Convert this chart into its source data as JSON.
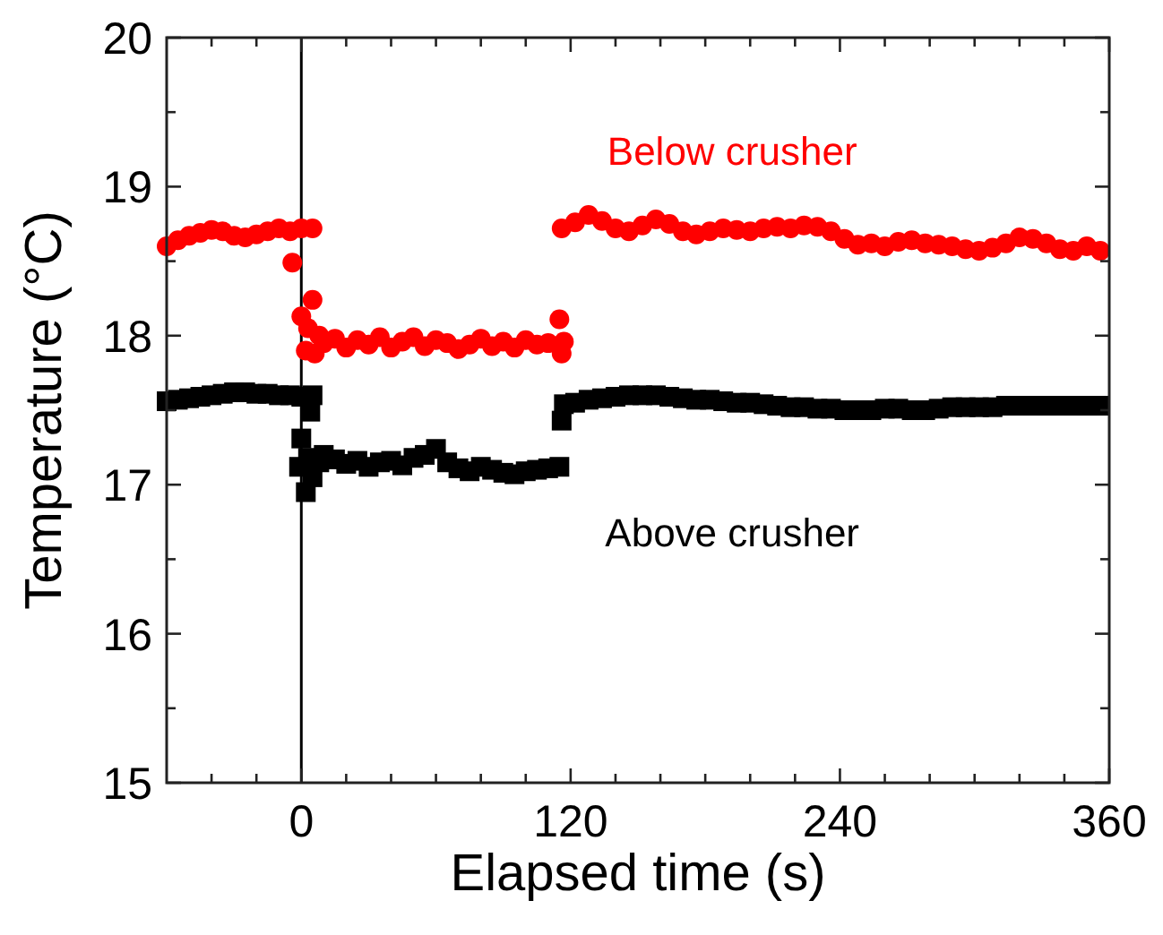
{
  "chart_data": {
    "type": "scatter",
    "xlabel": "Elapsed time (s)",
    "ylabel": "Temperature (°C)",
    "xlim": [
      -60,
      360
    ],
    "ylim": [
      15,
      20
    ],
    "xticks": [
      {
        "value": -40,
        "label": null
      },
      {
        "value": -20,
        "label": null
      },
      0,
      {
        "value": 20,
        "label": null
      },
      {
        "value": 40,
        "label": null
      },
      {
        "value": 60,
        "label": null
      },
      {
        "value": 80,
        "label": null
      },
      {
        "value": 100,
        "label": null
      },
      120,
      {
        "value": 140,
        "label": null
      },
      {
        "value": 160,
        "label": null
      },
      {
        "value": 180,
        "label": null
      },
      {
        "value": 200,
        "label": null
      },
      {
        "value": 220,
        "label": null
      },
      240,
      {
        "value": 260,
        "label": null
      },
      {
        "value": 280,
        "label": null
      },
      {
        "value": 300,
        "label": null
      },
      {
        "value": 320,
        "label": null
      },
      {
        "value": 340,
        "label": null
      },
      360
    ],
    "yticks": [
      15,
      {
        "value": 15.5,
        "label": null
      },
      16,
      {
        "value": 16.5,
        "label": null
      },
      17,
      {
        "value": 17.5,
        "label": null
      },
      18,
      {
        "value": 18.5,
        "label": null
      },
      19,
      {
        "value": 19.5,
        "label": null
      },
      20
    ],
    "grid": false,
    "ref_lines": [
      {
        "axis": "x",
        "value": 0,
        "color": "#000000"
      }
    ],
    "series": [
      {
        "name": "Below crusher",
        "color": "#ff0000",
        "marker": "circle",
        "x": [
          -60,
          -55,
          -50,
          -45,
          -40,
          -35,
          -30,
          -25,
          -20,
          -15,
          -10,
          -5,
          0,
          5,
          -4,
          0,
          2,
          3,
          5,
          6,
          8,
          10,
          15,
          20,
          25,
          30,
          35,
          40,
          45,
          50,
          55,
          60,
          65,
          70,
          75,
          80,
          85,
          90,
          95,
          100,
          105,
          110,
          115,
          116,
          117,
          116,
          122,
          128,
          134,
          140,
          146,
          152,
          158,
          164,
          170,
          176,
          182,
          188,
          194,
          200,
          206,
          212,
          218,
          224,
          230,
          236,
          242,
          248,
          254,
          260,
          266,
          272,
          278,
          284,
          290,
          296,
          302,
          308,
          314,
          320,
          326,
          332,
          338,
          344,
          350,
          356
        ],
        "values": [
          18.6,
          18.64,
          18.67,
          18.69,
          18.71,
          18.7,
          18.67,
          18.66,
          18.68,
          18.7,
          18.72,
          18.7,
          18.72,
          18.72,
          18.49,
          18.13,
          17.9,
          18.05,
          18.24,
          17.88,
          18.0,
          17.95,
          17.98,
          17.92,
          17.97,
          17.94,
          17.99,
          17.92,
          17.96,
          17.99,
          17.93,
          17.97,
          17.95,
          17.91,
          17.94,
          17.98,
          17.93,
          17.96,
          17.92,
          17.97,
          17.94,
          17.95,
          18.11,
          17.88,
          17.96,
          18.72,
          18.76,
          18.81,
          18.77,
          18.72,
          18.7,
          18.74,
          18.78,
          18.75,
          18.7,
          18.68,
          18.7,
          18.72,
          18.71,
          18.7,
          18.72,
          18.73,
          18.72,
          18.74,
          18.73,
          18.7,
          18.65,
          18.61,
          18.62,
          18.6,
          18.63,
          18.64,
          18.62,
          18.61,
          18.6,
          18.58,
          18.57,
          18.59,
          18.62,
          18.66,
          18.65,
          18.62,
          18.58,
          18.57,
          18.6,
          18.57
        ]
      },
      {
        "name": "Above crusher",
        "color": "#000000",
        "marker": "square",
        "x": [
          -60,
          -55,
          -50,
          -45,
          -40,
          -35,
          -30,
          -25,
          -20,
          -15,
          -10,
          -5,
          0,
          5,
          4,
          -1,
          0,
          2,
          3,
          5,
          8,
          10,
          15,
          20,
          25,
          30,
          35,
          40,
          45,
          50,
          55,
          60,
          65,
          70,
          75,
          80,
          85,
          90,
          95,
          100,
          105,
          110,
          115,
          116,
          117,
          122,
          128,
          134,
          140,
          146,
          152,
          158,
          164,
          170,
          176,
          182,
          188,
          194,
          200,
          206,
          212,
          218,
          224,
          230,
          236,
          242,
          248,
          254,
          260,
          266,
          272,
          278,
          284,
          290,
          296,
          302,
          308,
          314,
          320,
          326,
          332,
          338,
          344,
          350,
          356
        ],
        "values": [
          17.56,
          17.57,
          17.58,
          17.59,
          17.6,
          17.61,
          17.62,
          17.62,
          17.61,
          17.61,
          17.6,
          17.6,
          17.59,
          17.6,
          17.49,
          17.12,
          17.31,
          16.95,
          17.18,
          17.05,
          17.15,
          17.2,
          17.17,
          17.14,
          17.16,
          17.12,
          17.15,
          17.16,
          17.13,
          17.18,
          17.2,
          17.24,
          17.15,
          17.11,
          17.09,
          17.12,
          17.1,
          17.08,
          17.07,
          17.09,
          17.1,
          17.11,
          17.12,
          17.43,
          17.54,
          17.55,
          17.57,
          17.58,
          17.59,
          17.6,
          17.6,
          17.6,
          17.59,
          17.58,
          17.57,
          17.57,
          17.56,
          17.55,
          17.55,
          17.54,
          17.53,
          17.52,
          17.52,
          17.51,
          17.51,
          17.5,
          17.5,
          17.5,
          17.51,
          17.51,
          17.5,
          17.5,
          17.51,
          17.52,
          17.52,
          17.52,
          17.52,
          17.53,
          17.53,
          17.53,
          17.53,
          17.53,
          17.53,
          17.53,
          17.53
        ]
      }
    ]
  }
}
